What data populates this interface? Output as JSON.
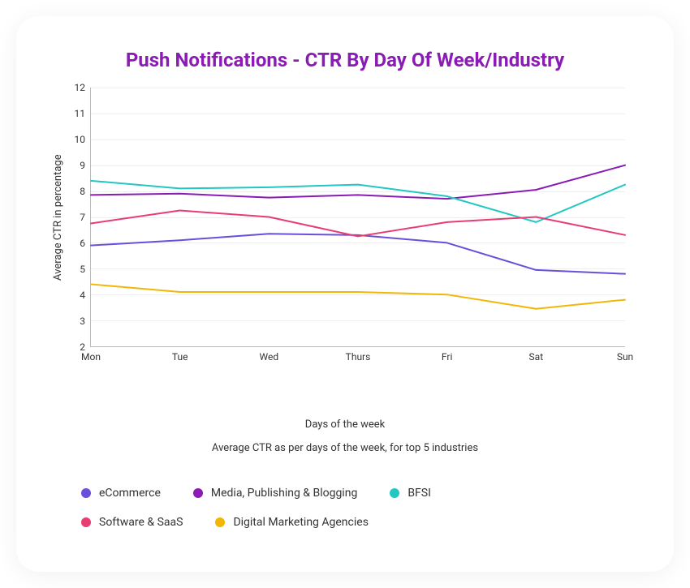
{
  "title": "Push Notifications - CTR By Day Of Week/Industry",
  "title_color": "#8a1bb5",
  "title_fontsize": 24,
  "chart": {
    "type": "line",
    "xlabel": "Days of the week",
    "ylabel": "Average CTR in percentage",
    "subtitle": "Average CTR as per days of the week, for top 5 industries",
    "categories": [
      "Mon",
      "Tue",
      "Wed",
      "Thurs",
      "Fri",
      "Sat",
      "Sun"
    ],
    "ylim": [
      2,
      12
    ],
    "ytick_step": 1,
    "grid_color": "#eeeeee",
    "axis_color": "#bbbbbb",
    "background_color": "#ffffff",
    "label_fontsize": 13,
    "tick_fontsize": 12,
    "line_width": 2,
    "series": [
      {
        "name": "eCommerce",
        "color": "#6b4ed9",
        "values": [
          5.9,
          6.1,
          6.35,
          6.3,
          6.0,
          4.95,
          4.8
        ]
      },
      {
        "name": "Media, Publishing & Blogging",
        "color": "#8a1bb5",
        "values": [
          7.85,
          7.9,
          7.75,
          7.85,
          7.7,
          8.05,
          9.0
        ]
      },
      {
        "name": "BFSI",
        "color": "#22c7c2",
        "values": [
          8.4,
          8.1,
          8.15,
          8.25,
          7.8,
          6.8,
          8.25
        ]
      },
      {
        "name": "Software & SaaS",
        "color": "#e83d72",
        "values": [
          6.75,
          7.25,
          7.0,
          6.25,
          6.8,
          7.0,
          6.3
        ]
      },
      {
        "name": "Digital Marketing Agencies",
        "color": "#f2b705",
        "values": [
          4.4,
          4.1,
          4.1,
          4.1,
          4.0,
          3.45,
          3.8
        ]
      }
    ],
    "legend": {
      "rows": [
        [
          "eCommerce",
          "Media, Publishing & Blogging",
          "BFSI"
        ],
        [
          "Software & SaaS",
          "Digital Marketing Agencies"
        ]
      ],
      "dot_size": 12,
      "fontsize": 14
    }
  }
}
